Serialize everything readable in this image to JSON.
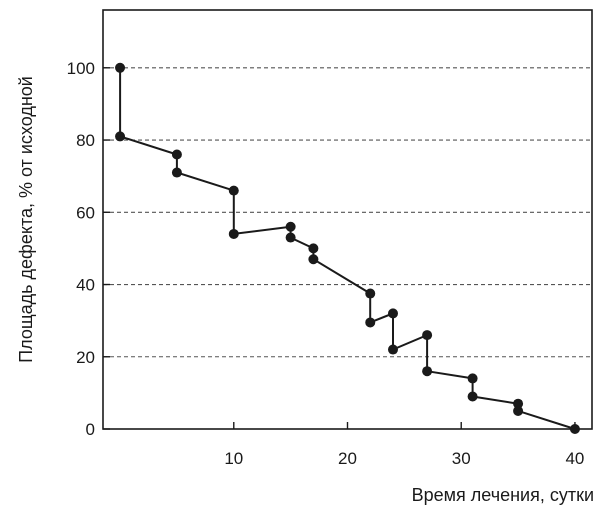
{
  "chart_data": {
    "type": "line",
    "title": "",
    "xlabel": "Время лечения, сутки",
    "ylabel": "Площадь дефекта, % от исходной",
    "xlim": [
      -1.5,
      41.5
    ],
    "ylim": [
      0,
      116
    ],
    "x_ticks": [
      10,
      20,
      30,
      40
    ],
    "y_ticks": [
      0,
      20,
      40,
      60,
      80,
      100
    ],
    "grid": "horizontal-dashed",
    "legend": "none",
    "colors": {
      "line": "#1a1a1a",
      "marker": "#1a1a1a",
      "grid": "#555555",
      "axis": "#1a1a1a"
    },
    "series": [
      {
        "x": [
          0,
          0,
          5,
          5,
          10,
          10,
          15,
          15,
          17,
          17,
          22,
          22,
          24,
          24,
          27,
          27,
          31,
          31,
          35,
          35,
          40
        ],
        "y": [
          100,
          81,
          76,
          71,
          66,
          54,
          56,
          53,
          50,
          47,
          37.5,
          29.5,
          32,
          22,
          26,
          16,
          14,
          9,
          7,
          5,
          0
        ]
      }
    ]
  }
}
